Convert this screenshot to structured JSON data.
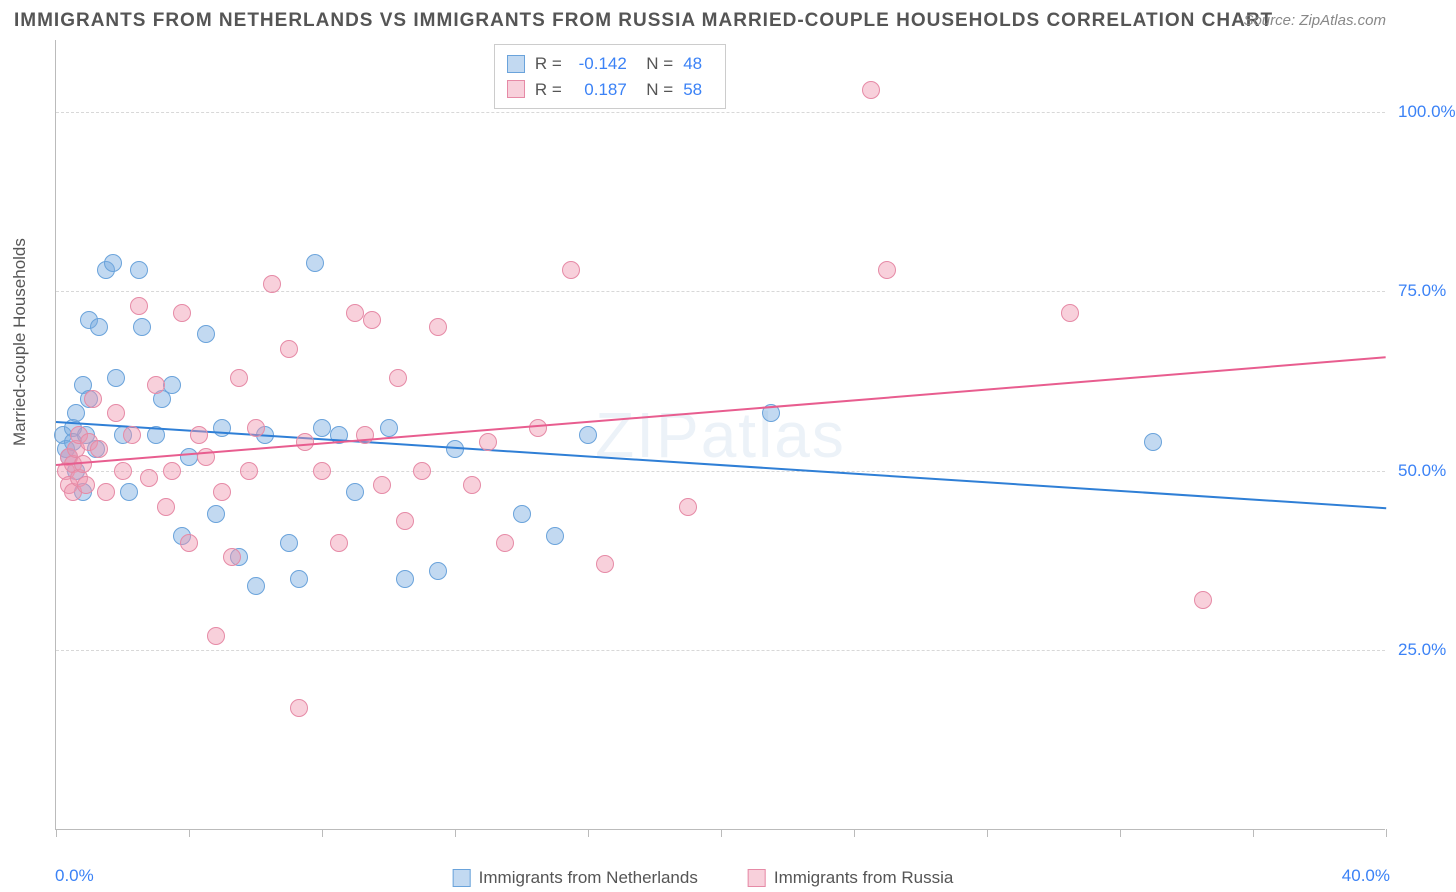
{
  "chart": {
    "title": "IMMIGRANTS FROM NETHERLANDS VS IMMIGRANTS FROM RUSSIA MARRIED-COUPLE HOUSEHOLDS CORRELATION CHART",
    "source": "Source: ZipAtlas.com",
    "watermark": "ZIPatlas",
    "y_axis_label": "Married-couple Households",
    "type": "scatter",
    "xlim": [
      0,
      40
    ],
    "ylim": [
      0,
      110
    ],
    "x_ticks_at": [
      0,
      4,
      8,
      12,
      16,
      20,
      24,
      28,
      32,
      36,
      40
    ],
    "x_tick_labels": {
      "0": "0.0%",
      "40": "40.0%"
    },
    "y_grid_lines": [
      25,
      50,
      75,
      100
    ],
    "y_tick_labels": {
      "25": "25.0%",
      "50": "50.0%",
      "75": "75.0%",
      "100": "100.0%"
    },
    "background_color": "#ffffff",
    "grid_color": "#d8d8d8",
    "axis_color": "#bbbbbb",
    "point_radius": 9,
    "label_fontsize": 17,
    "title_fontsize": 19,
    "tick_color": "#3b82f6",
    "series": [
      {
        "name": "Immigrants from Netherlands",
        "color_fill": "rgba(120,170,225,0.45)",
        "color_stroke": "#6aa3db",
        "trend_color": "#2f7fd6",
        "r": "-0.142",
        "n": "48",
        "trend": {
          "x1": 0,
          "y1": 57,
          "x2": 40,
          "y2": 45
        },
        "points": [
          [
            0.2,
            55
          ],
          [
            0.3,
            53
          ],
          [
            0.4,
            52
          ],
          [
            0.5,
            56
          ],
          [
            0.5,
            54
          ],
          [
            0.6,
            50
          ],
          [
            0.6,
            58
          ],
          [
            0.8,
            47
          ],
          [
            0.8,
            62
          ],
          [
            0.9,
            55
          ],
          [
            1.0,
            60
          ],
          [
            1.0,
            71
          ],
          [
            1.2,
            53
          ],
          [
            1.3,
            70
          ],
          [
            1.5,
            78
          ],
          [
            1.7,
            79
          ],
          [
            1.8,
            63
          ],
          [
            2.0,
            55
          ],
          [
            2.2,
            47
          ],
          [
            2.5,
            78
          ],
          [
            2.6,
            70
          ],
          [
            3.0,
            55
          ],
          [
            3.2,
            60
          ],
          [
            3.5,
            62
          ],
          [
            3.8,
            41
          ],
          [
            4.0,
            52
          ],
          [
            4.5,
            69
          ],
          [
            4.8,
            44
          ],
          [
            5.0,
            56
          ],
          [
            5.5,
            38
          ],
          [
            6.0,
            34
          ],
          [
            6.3,
            55
          ],
          [
            7.0,
            40
          ],
          [
            7.3,
            35
          ],
          [
            7.8,
            79
          ],
          [
            8.0,
            56
          ],
          [
            8.5,
            55
          ],
          [
            9.0,
            47
          ],
          [
            10.0,
            56
          ],
          [
            10.5,
            35
          ],
          [
            11.5,
            36
          ],
          [
            12.0,
            53
          ],
          [
            14.0,
            44
          ],
          [
            15.0,
            41
          ],
          [
            16.0,
            55
          ],
          [
            21.5,
            58
          ],
          [
            33.0,
            54
          ]
        ]
      },
      {
        "name": "Immigrants from Russia",
        "color_fill": "rgba(240,150,175,0.45)",
        "color_stroke": "#e68aa6",
        "trend_color": "#e85d8f",
        "r": "0.187",
        "n": "58",
        "trend": {
          "x1": 0,
          "y1": 51,
          "x2": 40,
          "y2": 66
        },
        "points": [
          [
            0.3,
            50
          ],
          [
            0.4,
            52
          ],
          [
            0.4,
            48
          ],
          [
            0.5,
            51
          ],
          [
            0.5,
            47
          ],
          [
            0.6,
            53
          ],
          [
            0.7,
            49
          ],
          [
            0.7,
            55
          ],
          [
            0.8,
            51
          ],
          [
            0.9,
            48
          ],
          [
            1.0,
            54
          ],
          [
            1.1,
            60
          ],
          [
            1.3,
            53
          ],
          [
            1.5,
            47
          ],
          [
            1.8,
            58
          ],
          [
            2.0,
            50
          ],
          [
            2.3,
            55
          ],
          [
            2.5,
            73
          ],
          [
            2.8,
            49
          ],
          [
            3.0,
            62
          ],
          [
            3.3,
            45
          ],
          [
            3.5,
            50
          ],
          [
            3.8,
            72
          ],
          [
            4.0,
            40
          ],
          [
            4.3,
            55
          ],
          [
            4.5,
            52
          ],
          [
            4.8,
            27
          ],
          [
            5.0,
            47
          ],
          [
            5.3,
            38
          ],
          [
            5.5,
            63
          ],
          [
            5.8,
            50
          ],
          [
            6.0,
            56
          ],
          [
            6.5,
            76
          ],
          [
            7.0,
            67
          ],
          [
            7.3,
            17
          ],
          [
            7.5,
            54
          ],
          [
            8.0,
            50
          ],
          [
            8.5,
            40
          ],
          [
            9.0,
            72
          ],
          [
            9.3,
            55
          ],
          [
            9.5,
            71
          ],
          [
            9.8,
            48
          ],
          [
            10.3,
            63
          ],
          [
            10.5,
            43
          ],
          [
            11.0,
            50
          ],
          [
            11.5,
            70
          ],
          [
            12.5,
            48
          ],
          [
            13.0,
            54
          ],
          [
            13.5,
            40
          ],
          [
            14.5,
            56
          ],
          [
            15.5,
            78
          ],
          [
            16.5,
            37
          ],
          [
            19.0,
            45
          ],
          [
            24.5,
            103
          ],
          [
            25.0,
            78
          ],
          [
            30.5,
            72
          ],
          [
            34.5,
            32
          ]
        ]
      }
    ],
    "bottom_legend": [
      {
        "swatch_fill": "rgba(120,170,225,0.45)",
        "swatch_stroke": "#6aa3db",
        "label": "Immigrants from Netherlands"
      },
      {
        "swatch_fill": "rgba(240,150,175,0.45)",
        "swatch_stroke": "#e68aa6",
        "label": "Immigrants from Russia"
      }
    ]
  }
}
